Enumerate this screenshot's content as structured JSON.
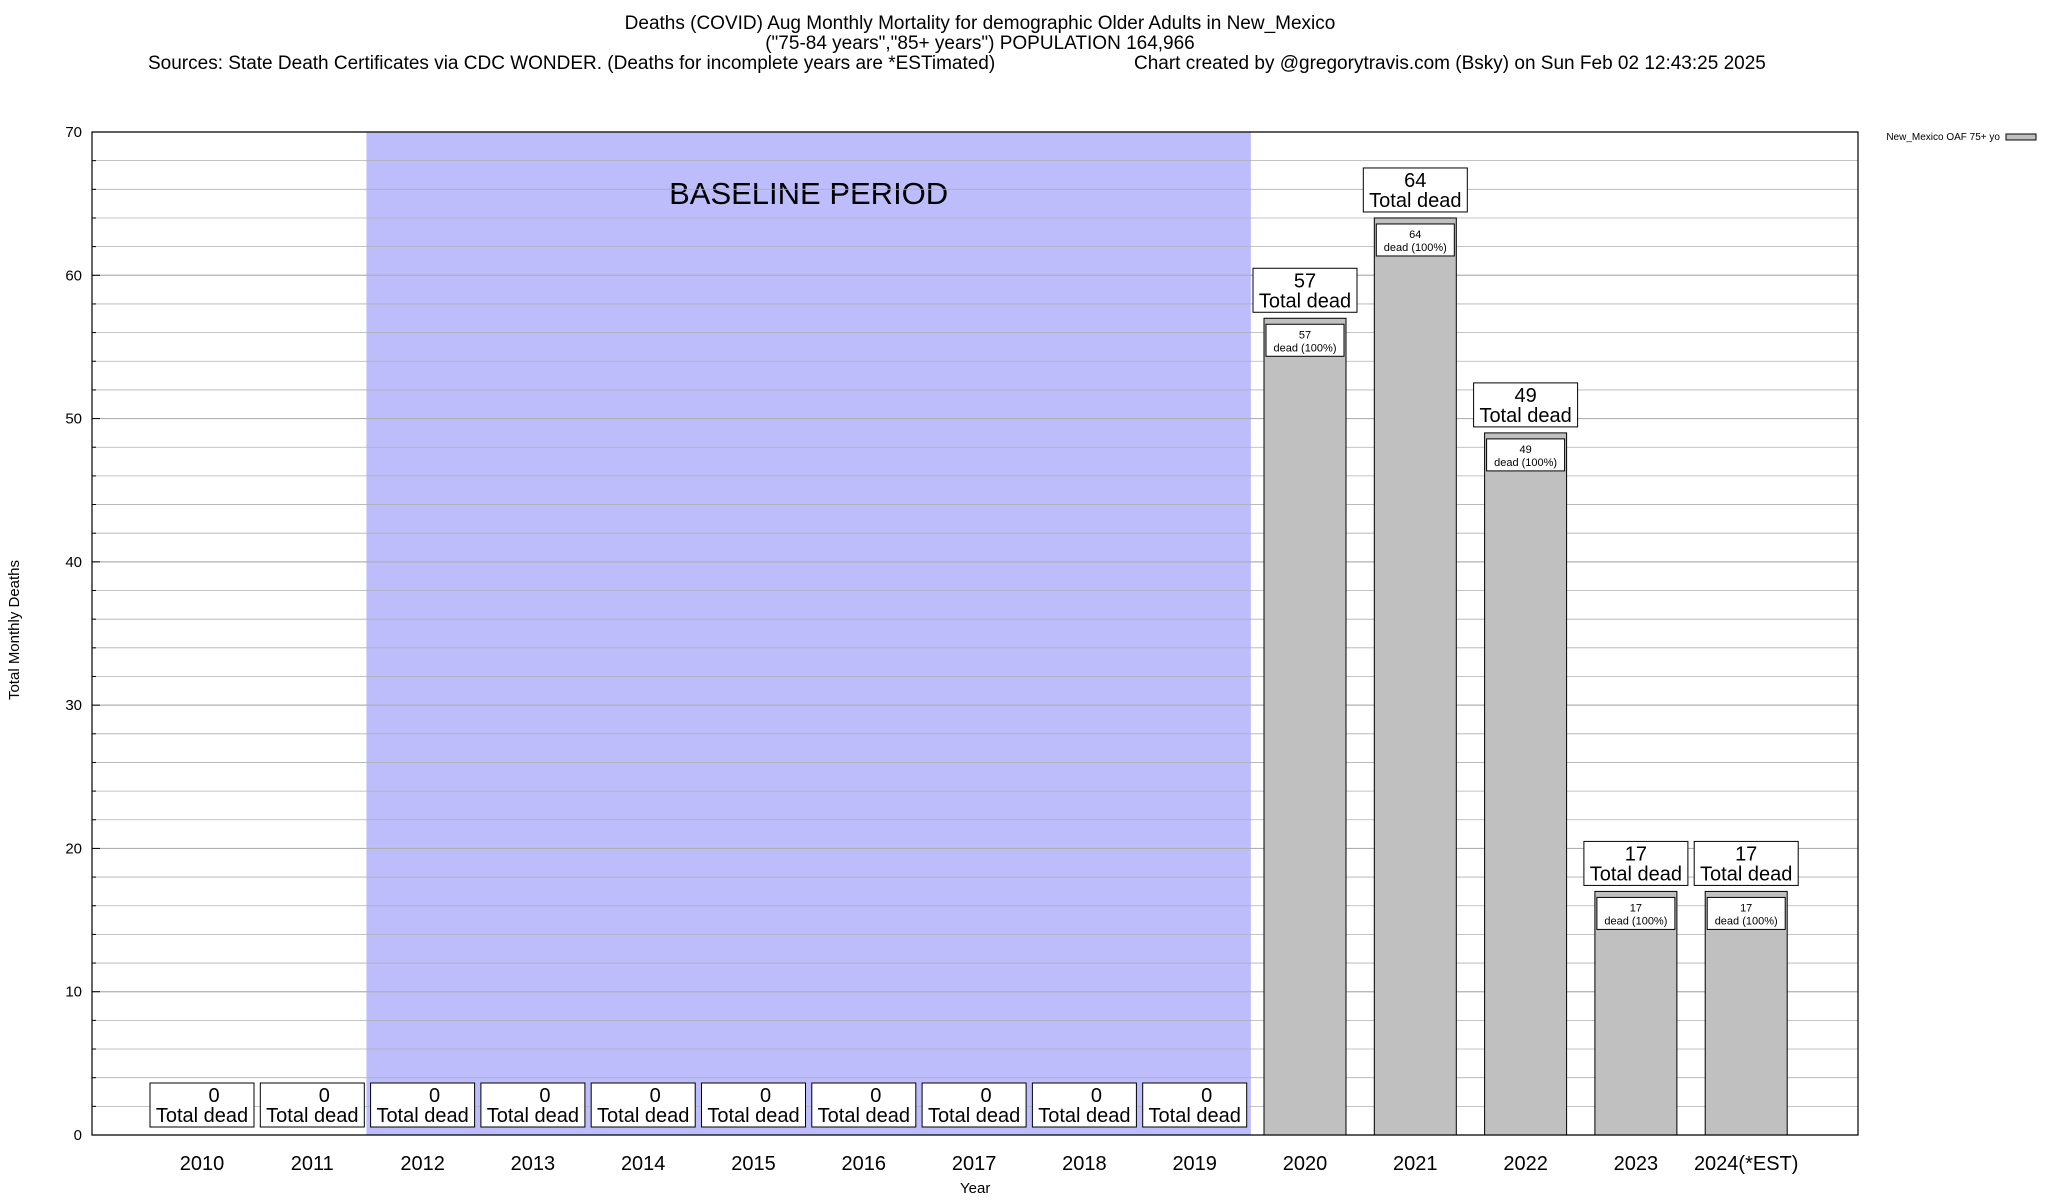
{
  "header": {
    "title_line1": "Deaths (COVID) Aug Monthly Mortality for demographic Older Adults in New_Mexico",
    "title_line2": "(\"75-84 years\",\"85+ years\") POPULATION 164,966",
    "sources": "Sources: State Death Certificates via CDC WONDER. (Deaths for incomplete years are *ESTimated)",
    "credit": "Chart created by @gregorytravis.com (Bsky) on Sun Feb 02 12:43:25 2025"
  },
  "chart_data": {
    "type": "bar",
    "xlabel": "Year",
    "ylabel": "Total Monthly Deaths",
    "ylim": [
      0,
      70
    ],
    "yticks": [
      0,
      10,
      20,
      30,
      40,
      50,
      60,
      70
    ],
    "grid": true,
    "legend_position": "top-right",
    "baseline_label": "BASELINE PERIOD",
    "baseline_range": [
      "2012",
      "2019"
    ],
    "categories": [
      "2010",
      "2011",
      "2012",
      "2013",
      "2014",
      "2015",
      "2016",
      "2017",
      "2018",
      "2019",
      "2020",
      "2021",
      "2022",
      "2023",
      "2024(*EST)"
    ],
    "series": [
      {
        "name": "New_Mexico OAF 75+ yo",
        "values": [
          0,
          0,
          0,
          0,
          0,
          0,
          0,
          0,
          0,
          0,
          57,
          64,
          49,
          17,
          17
        ]
      }
    ],
    "total_label_suffix": "Total dead",
    "inner_label_suffix": "dead (100%)",
    "colors": {
      "bar": "#c0c0c0",
      "baseline": "#bdbdfc",
      "grid": "#b0b0b0"
    }
  }
}
